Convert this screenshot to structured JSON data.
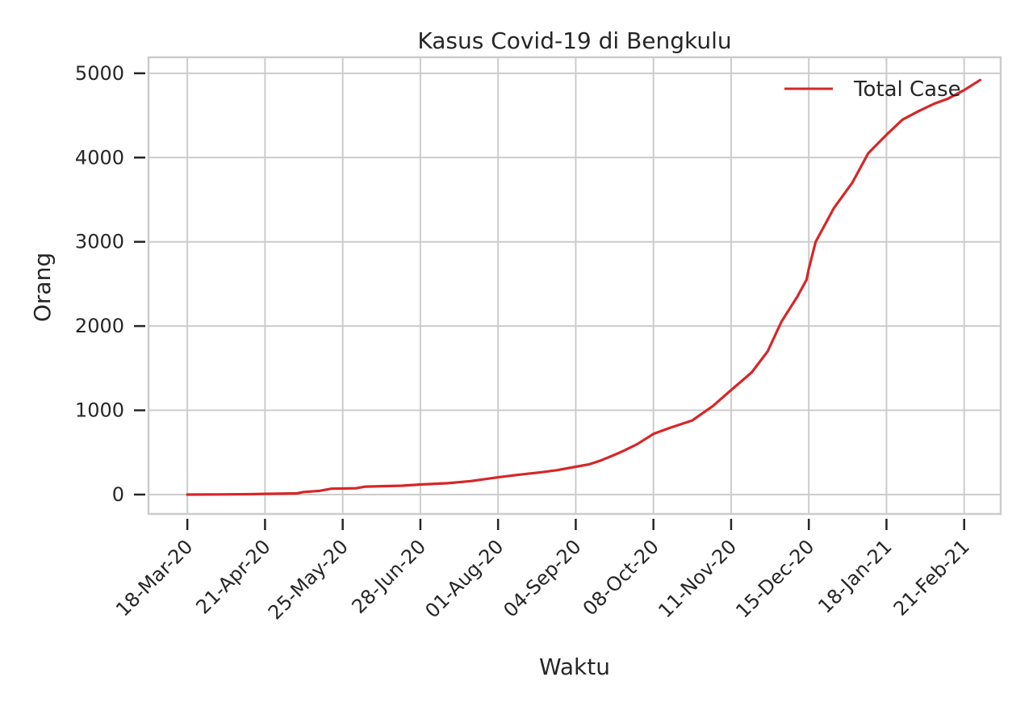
{
  "chart_data": {
    "type": "line",
    "title": "Kasus Covid-19 di Bengkulu",
    "xlabel": "Waktu",
    "ylabel": "Orang",
    "x_tick_labels": [
      "18-Mar-20",
      "21-Apr-20",
      "25-May-20",
      "28-Jun-20",
      "01-Aug-20",
      "04-Sep-20",
      "08-Oct-20",
      "11-Nov-20",
      "15-Dec-20",
      "18-Jan-21",
      "21-Feb-21"
    ],
    "x_ticks": [
      "2020-03-18",
      "2020-04-21",
      "2020-05-25",
      "2020-06-28",
      "2020-08-01",
      "2020-09-04",
      "2020-10-08",
      "2020-11-11",
      "2020-12-15",
      "2021-01-18",
      "2021-02-21"
    ],
    "xlim": [
      "2020-03-01",
      "2021-03-09"
    ],
    "y_ticks": [
      0,
      1000,
      2000,
      3000,
      4000,
      5000
    ],
    "y_tick_labels": [
      "0",
      "1000",
      "2000",
      "3000",
      "4000",
      "5000"
    ],
    "ylim": [
      -230,
      5190
    ],
    "grid": true,
    "legend_position": "top-right",
    "series": [
      {
        "name": "Total Case",
        "color": "#d62728",
        "points": [
          [
            "2020-03-18",
            0
          ],
          [
            "2020-04-01",
            2
          ],
          [
            "2020-04-15",
            5
          ],
          [
            "2020-04-21",
            8
          ],
          [
            "2020-05-05",
            14
          ],
          [
            "2020-05-08",
            30
          ],
          [
            "2020-05-15",
            45
          ],
          [
            "2020-05-20",
            70
          ],
          [
            "2020-05-25",
            72
          ],
          [
            "2020-05-31",
            75
          ],
          [
            "2020-06-04",
            95
          ],
          [
            "2020-06-20",
            105
          ],
          [
            "2020-06-28",
            120
          ],
          [
            "2020-07-10",
            135
          ],
          [
            "2020-07-20",
            160
          ],
          [
            "2020-08-01",
            205
          ],
          [
            "2020-08-10",
            235
          ],
          [
            "2020-08-20",
            265
          ],
          [
            "2020-08-27",
            290
          ],
          [
            "2020-09-04",
            330
          ],
          [
            "2020-09-10",
            360
          ],
          [
            "2020-09-15",
            405
          ],
          [
            "2020-09-20",
            460
          ],
          [
            "2020-09-25",
            520
          ],
          [
            "2020-10-01",
            600
          ],
          [
            "2020-10-08",
            720
          ],
          [
            "2020-10-15",
            790
          ],
          [
            "2020-10-25",
            880
          ],
          [
            "2020-11-03",
            1050
          ],
          [
            "2020-11-11",
            1240
          ],
          [
            "2020-11-20",
            1450
          ],
          [
            "2020-11-27",
            1700
          ],
          [
            "2020-12-03",
            2050
          ],
          [
            "2020-12-10",
            2350
          ],
          [
            "2020-12-14",
            2550
          ],
          [
            "2020-12-15",
            2680
          ],
          [
            "2020-12-18",
            3000
          ],
          [
            "2020-12-21",
            3150
          ],
          [
            "2020-12-26",
            3400
          ],
          [
            "2021-01-03",
            3700
          ],
          [
            "2021-01-10",
            4050
          ],
          [
            "2021-01-18",
            4270
          ],
          [
            "2021-01-25",
            4450
          ],
          [
            "2021-02-01",
            4550
          ],
          [
            "2021-02-08",
            4640
          ],
          [
            "2021-02-14",
            4700
          ],
          [
            "2021-02-21",
            4800
          ],
          [
            "2021-02-28",
            4920
          ]
        ]
      }
    ]
  }
}
